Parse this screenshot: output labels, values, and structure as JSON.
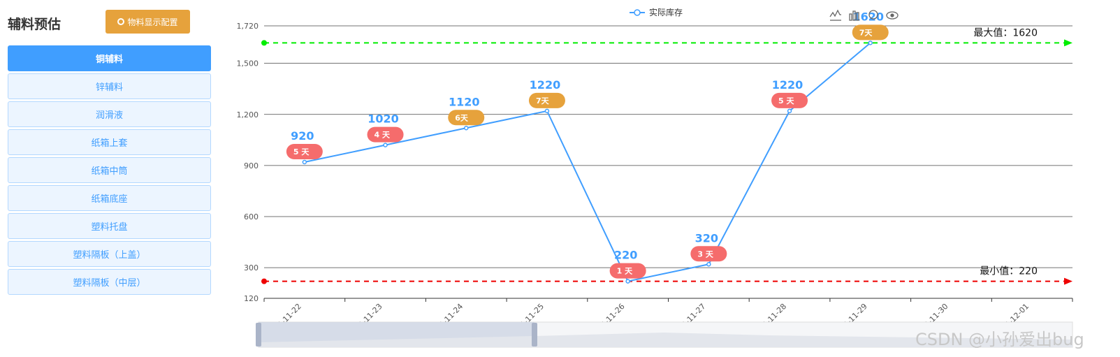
{
  "sidebar": {
    "title": "辅料预估",
    "config_button": "物料显示配置",
    "items": [
      {
        "label": "铜辅料",
        "active": true
      },
      {
        "label": "锌辅料",
        "active": false
      },
      {
        "label": "润滑液",
        "active": false
      },
      {
        "label": "纸箱上套",
        "active": false
      },
      {
        "label": "纸箱中筒",
        "active": false
      },
      {
        "label": "纸箱底座",
        "active": false
      },
      {
        "label": "塑料托盘",
        "active": false
      },
      {
        "label": "塑料隔板（上盖）",
        "active": false
      },
      {
        "label": "塑料隔板（中层）",
        "active": false
      }
    ]
  },
  "chart_data": {
    "type": "line",
    "categories": [
      "2024-11-22",
      "2024-11-23",
      "2024-11-24",
      "2024-11-25",
      "2024-11-26",
      "2024-11-27",
      "2024-11-28",
      "2024-11-29",
      "2024-11-30",
      "2024-12-01"
    ],
    "series": [
      {
        "name": "实际库存",
        "values": [
          920,
          1020,
          1120,
          1220,
          220,
          320,
          1220,
          1620,
          null,
          null
        ],
        "color": "#409EFF"
      }
    ],
    "day_labels": [
      "5 天",
      "4 天",
      "6天",
      "7天",
      "1 天",
      "3 天",
      "5 天",
      "7天"
    ],
    "day_label_colors": [
      "#F56C6C",
      "#F56C6C",
      "#E6A23C",
      "#E6A23C",
      "#F56C6C",
      "#F56C6C",
      "#F56C6C",
      "#E6A23C"
    ],
    "y_ticks": [
      "120",
      "300",
      "600",
      "900",
      "1,200",
      "1,500",
      "1,720"
    ],
    "y_tick_values": [
      120,
      300,
      600,
      900,
      1200,
      1500,
      1720
    ],
    "ylim": [
      120,
      1720
    ],
    "max_line": {
      "value": 1620,
      "label": "最大值：1620",
      "color": "#00ee00"
    },
    "min_line": {
      "value": 220,
      "label": "最小值：220",
      "color": "#ee0000"
    },
    "legend_position": "top-center",
    "grid": true
  },
  "watermark": "CSDN @小孙爱出bug"
}
